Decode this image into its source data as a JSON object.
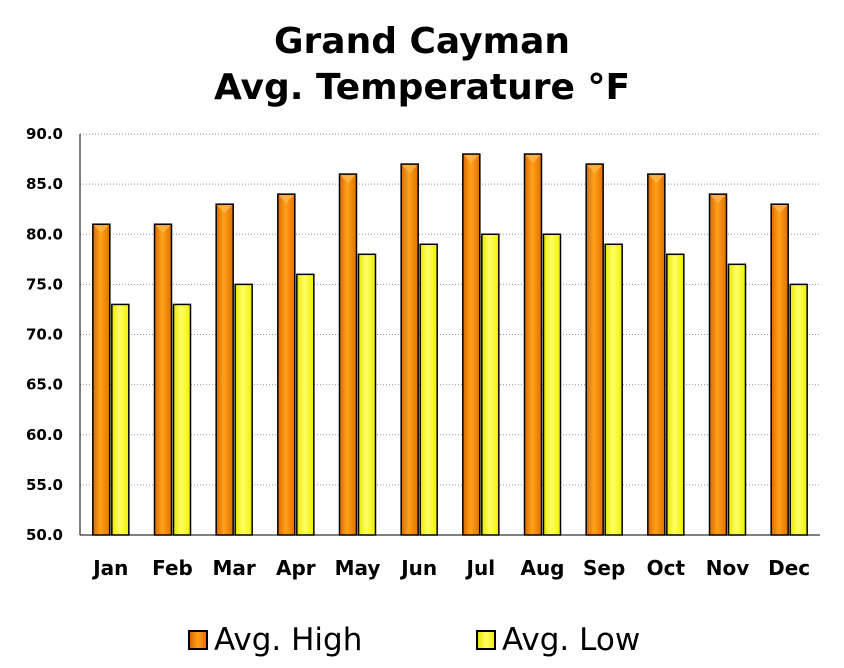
{
  "chart_data": {
    "type": "bar",
    "title": "Grand Cayman",
    "subtitle": "Avg. Temperature °F",
    "categories": [
      "Jan",
      "Feb",
      "Mar",
      "Apr",
      "May",
      "Jun",
      "Jul",
      "Aug",
      "Sep",
      "Oct",
      "Nov",
      "Dec"
    ],
    "series": [
      {
        "name": "Avg. High",
        "color": "#ff8c00",
        "values": [
          81,
          81,
          83,
          84,
          86,
          87,
          88,
          88,
          87,
          86,
          84,
          83
        ]
      },
      {
        "name": "Avg. Low",
        "color": "#ffff33",
        "values": [
          73,
          73,
          75,
          76,
          78,
          79,
          80,
          80,
          79,
          78,
          77,
          75
        ]
      }
    ],
    "ylim": [
      50,
      90
    ],
    "yticks": [
      "50.0",
      "55.0",
      "60.0",
      "65.0",
      "70.0",
      "75.0",
      "80.0",
      "85.0",
      "90.0"
    ],
    "grid": true,
    "legend": "bottom"
  }
}
